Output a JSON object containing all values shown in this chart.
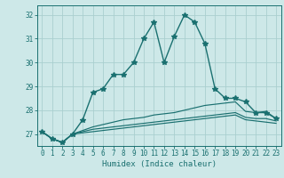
{
  "xlabel": "Humidex (Indice chaleur)",
  "x_values": [
    0,
    1,
    2,
    3,
    4,
    5,
    6,
    7,
    8,
    9,
    10,
    11,
    12,
    13,
    14,
    15,
    16,
    17,
    18,
    19,
    20,
    21,
    22,
    23
  ],
  "line1": [
    27.1,
    26.8,
    26.65,
    27.0,
    27.6,
    28.75,
    28.9,
    29.5,
    29.5,
    30.0,
    31.0,
    31.7,
    30.0,
    31.1,
    32.0,
    31.7,
    30.8,
    28.9,
    28.5,
    28.5,
    28.35,
    27.9,
    27.9,
    27.65
  ],
  "line2": [
    27.1,
    26.8,
    26.65,
    27.0,
    27.15,
    27.3,
    27.4,
    27.5,
    27.6,
    27.65,
    27.7,
    27.8,
    27.85,
    27.9,
    28.0,
    28.1,
    28.2,
    28.25,
    28.3,
    28.35,
    27.95,
    27.9,
    27.95,
    27.65
  ],
  "line3": [
    27.1,
    26.8,
    26.65,
    27.0,
    27.1,
    27.2,
    27.25,
    27.3,
    27.35,
    27.4,
    27.45,
    27.5,
    27.55,
    27.6,
    27.65,
    27.7,
    27.75,
    27.8,
    27.85,
    27.9,
    27.7,
    27.65,
    27.65,
    27.55
  ],
  "line4": [
    27.1,
    26.8,
    26.65,
    27.0,
    27.05,
    27.1,
    27.15,
    27.2,
    27.25,
    27.3,
    27.35,
    27.4,
    27.45,
    27.5,
    27.55,
    27.6,
    27.65,
    27.7,
    27.75,
    27.8,
    27.6,
    27.55,
    27.5,
    27.45
  ],
  "ylim": [
    26.5,
    32.4
  ],
  "xlim": [
    -0.5,
    23.5
  ],
  "yticks": [
    27,
    28,
    29,
    30,
    31,
    32
  ],
  "xticks": [
    0,
    1,
    2,
    3,
    4,
    5,
    6,
    7,
    8,
    9,
    10,
    11,
    12,
    13,
    14,
    15,
    16,
    17,
    18,
    19,
    20,
    21,
    22,
    23
  ],
  "line_color": "#1a7070",
  "bg_color": "#cde8e8",
  "grid_color": "#aacfcf",
  "marker": "*",
  "linewidth": 1.0,
  "markersize": 4,
  "tick_fontsize": 5.5,
  "xlabel_fontsize": 6.5
}
